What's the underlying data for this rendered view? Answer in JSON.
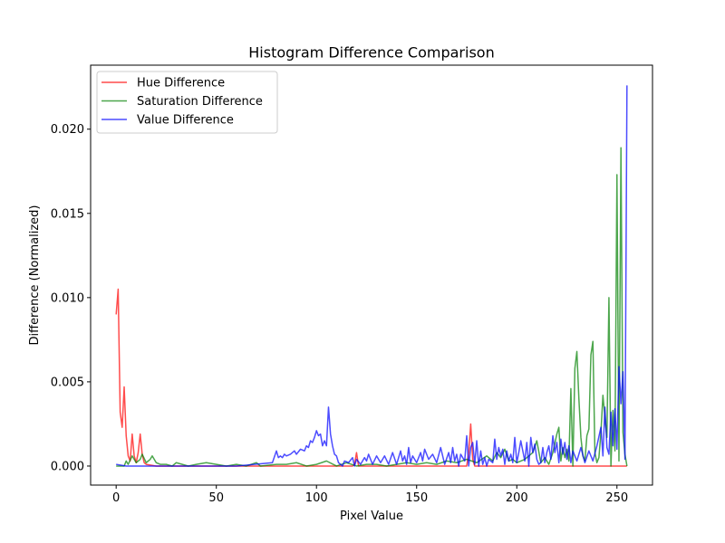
{
  "chart_data": {
    "type": "line",
    "title": "Histogram Difference Comparison",
    "xlabel": "Pixel Value",
    "ylabel": "Difference (Normalized)",
    "xlim": [
      -12.75,
      267.75
    ],
    "ylim": [
      -0.00113,
      0.0238
    ],
    "xticks": [
      0,
      50,
      100,
      150,
      200,
      250
    ],
    "yticks": [
      0.0,
      0.005,
      0.01,
      0.015,
      0.02
    ],
    "xtick_labels": [
      "0",
      "50",
      "100",
      "150",
      "200",
      "250"
    ],
    "ytick_labels": [
      "0.000",
      "0.005",
      "0.010",
      "0.015",
      "0.020"
    ],
    "grid": false,
    "legend_position": "upper-left",
    "series": [
      {
        "name": "Hue Difference",
        "color": "#ff0000",
        "points": [
          [
            0,
            0.009
          ],
          [
            1,
            0.0105
          ],
          [
            2,
            0.0032
          ],
          [
            3,
            0.0023
          ],
          [
            4,
            0.0047
          ],
          [
            5,
            0.0018
          ],
          [
            6,
            0.0006
          ],
          [
            7,
            0.0003
          ],
          [
            8,
            0.0019
          ],
          [
            9,
            0.0006
          ],
          [
            10,
            0.0002
          ],
          [
            11,
            0.0008
          ],
          [
            12,
            0.0019
          ],
          [
            13,
            0.0007
          ],
          [
            14,
            0.0002
          ],
          [
            15,
            0.0001
          ],
          [
            20,
            0.0
          ],
          [
            118,
            0.0
          ],
          [
            119,
            0.0001
          ],
          [
            120,
            0.0008
          ],
          [
            121,
            0.0
          ],
          [
            175,
            0.0
          ],
          [
            176,
            0.0008
          ],
          [
            177,
            0.0025
          ],
          [
            178,
            0.0004
          ],
          [
            179,
            0.0
          ],
          [
            255,
            0.0
          ]
        ]
      },
      {
        "name": "Saturation Difference",
        "color": "#008000",
        "points": [
          [
            0,
            0.0
          ],
          [
            4,
            0.0
          ],
          [
            5,
            0.0003
          ],
          [
            6,
            0.0001
          ],
          [
            8,
            0.0006
          ],
          [
            10,
            0.0002
          ],
          [
            12,
            0.0004
          ],
          [
            13,
            0.0007
          ],
          [
            15,
            0.0002
          ],
          [
            17,
            0.0004
          ],
          [
            18,
            0.0006
          ],
          [
            20,
            0.0002
          ],
          [
            22,
            0.0001
          ],
          [
            25,
            0.0001
          ],
          [
            28,
            0.0
          ],
          [
            30,
            0.0002
          ],
          [
            33,
            0.0001
          ],
          [
            36,
            0.0
          ],
          [
            40,
            0.0001
          ],
          [
            45,
            0.0002
          ],
          [
            50,
            0.0001
          ],
          [
            55,
            0.0
          ],
          [
            60,
            0.0001
          ],
          [
            65,
            0.0
          ],
          [
            70,
            0.0002
          ],
          [
            72,
            0.0
          ],
          [
            80,
            0.0001
          ],
          [
            85,
            0.0001
          ],
          [
            90,
            0.0002
          ],
          [
            95,
            0.0
          ],
          [
            100,
            0.0001
          ],
          [
            105,
            0.0003
          ],
          [
            110,
            0.0
          ],
          [
            115,
            0.0002
          ],
          [
            120,
            0.0
          ],
          [
            125,
            0.0001
          ],
          [
            130,
            0.0001
          ],
          [
            135,
            0.0
          ],
          [
            140,
            0.0001
          ],
          [
            145,
            0.0002
          ],
          [
            150,
            0.0001
          ],
          [
            155,
            0.0002
          ],
          [
            160,
            0.0001
          ],
          [
            165,
            0.0003
          ],
          [
            170,
            0.0002
          ],
          [
            175,
            0.0004
          ],
          [
            180,
            0.0002
          ],
          [
            185,
            0.0006
          ],
          [
            188,
            0.0003
          ],
          [
            190,
            0.0008
          ],
          [
            192,
            0.0005
          ],
          [
            194,
            0.001
          ],
          [
            196,
            0.0003
          ],
          [
            198,
            0.0004
          ],
          [
            200,
            0.0002
          ],
          [
            202,
            0.0003
          ],
          [
            204,
            0.0004
          ],
          [
            206,
            0.0006
          ],
          [
            208,
            0.0008
          ],
          [
            210,
            0.0015
          ],
          [
            212,
            0.0002
          ],
          [
            214,
            0.0005
          ],
          [
            216,
            0.0001
          ],
          [
            218,
            0.0008
          ],
          [
            220,
            0.0019
          ],
          [
            221,
            0.0023
          ],
          [
            222,
            0.0003
          ],
          [
            223,
            0.0011
          ],
          [
            224,
            0.0005
          ],
          [
            225,
            0.001
          ],
          [
            226,
            0.0003
          ],
          [
            227,
            0.0046
          ],
          [
            228,
            0.0
          ],
          [
            229,
            0.0058
          ],
          [
            230,
            0.0068
          ],
          [
            231,
            0.004
          ],
          [
            232,
            0.0017
          ],
          [
            233,
            0.0006
          ],
          [
            234,
            0.0003
          ],
          [
            235,
            0.0018
          ],
          [
            236,
            0.0022
          ],
          [
            237,
            0.0066
          ],
          [
            238,
            0.0074
          ],
          [
            239,
            0.0008
          ],
          [
            240,
            0.0002
          ],
          [
            241,
            0.0005
          ],
          [
            242,
            0.002
          ],
          [
            243,
            0.0042
          ],
          [
            244,
            0.0029
          ],
          [
            245,
            0.0017
          ],
          [
            246,
            0.01
          ],
          [
            247,
            0.0
          ],
          [
            248,
            0.0033
          ],
          [
            249,
            0.0009
          ],
          [
            250,
            0.0173
          ],
          [
            251,
            0.0003
          ],
          [
            252,
            0.0189
          ],
          [
            253,
            0.002
          ],
          [
            254,
            0.0007
          ],
          [
            255,
            0.0
          ]
        ]
      },
      {
        "name": "Value Difference",
        "color": "#0000ff",
        "points": [
          [
            0,
            0.0001
          ],
          [
            5,
            0.0
          ],
          [
            30,
            0.0
          ],
          [
            60,
            0.0
          ],
          [
            78,
            0.0002
          ],
          [
            80,
            0.0009
          ],
          [
            81,
            0.0005
          ],
          [
            82,
            0.0006
          ],
          [
            83,
            0.0005
          ],
          [
            84,
            0.0007
          ],
          [
            85,
            0.0006
          ],
          [
            87,
            0.0007
          ],
          [
            89,
            0.0009
          ],
          [
            90,
            0.0007
          ],
          [
            92,
            0.001
          ],
          [
            94,
            0.0009
          ],
          [
            95,
            0.0012
          ],
          [
            96,
            0.0011
          ],
          [
            97,
            0.0015
          ],
          [
            98,
            0.0014
          ],
          [
            99,
            0.0017
          ],
          [
            100,
            0.0021
          ],
          [
            101,
            0.0018
          ],
          [
            102,
            0.0019
          ],
          [
            103,
            0.0012
          ],
          [
            104,
            0.0015
          ],
          [
            105,
            0.0012
          ],
          [
            106,
            0.0035
          ],
          [
            107,
            0.0019
          ],
          [
            108,
            0.0012
          ],
          [
            109,
            0.0007
          ],
          [
            110,
            0.0006
          ],
          [
            111,
            0.0002
          ],
          [
            113,
            0.0
          ],
          [
            114,
            0.0003
          ],
          [
            116,
            0.0002
          ],
          [
            118,
            0.0005
          ],
          [
            119,
            0.0
          ],
          [
            120,
            0.0004
          ],
          [
            122,
            0.0001
          ],
          [
            124,
            0.0005
          ],
          [
            125,
            0.0003
          ],
          [
            126,
            0.0007
          ],
          [
            128,
            0.0001
          ],
          [
            130,
            0.0006
          ],
          [
            132,
            0.0002
          ],
          [
            134,
            0.0006
          ],
          [
            136,
            0.0001
          ],
          [
            138,
            0.0008
          ],
          [
            140,
            0.0001
          ],
          [
            142,
            0.0009
          ],
          [
            143,
            0.0003
          ],
          [
            144,
            0.0006
          ],
          [
            145,
            0.0001
          ],
          [
            146,
            0.0011
          ],
          [
            147,
            0.0002
          ],
          [
            148,
            0.0006
          ],
          [
            150,
            0.0002
          ],
          [
            152,
            0.0008
          ],
          [
            153,
            0.0003
          ],
          [
            154,
            0.001
          ],
          [
            156,
            0.0004
          ],
          [
            158,
            0.0007
          ],
          [
            160,
            0.0002
          ],
          [
            162,
            0.0011
          ],
          [
            164,
            0.0001
          ],
          [
            166,
            0.0008
          ],
          [
            167,
            0.0002
          ],
          [
            168,
            0.0011
          ],
          [
            169,
            0.0003
          ],
          [
            170,
            0.0007
          ],
          [
            171,
            0.0
          ],
          [
            172,
            0.0007
          ],
          [
            174,
            0.0003
          ],
          [
            175,
            0.0018
          ],
          [
            176,
            0.0
          ],
          [
            177,
            0.0011
          ],
          [
            178,
            0.0014
          ],
          [
            179,
            0.0001
          ],
          [
            180,
            0.0015
          ],
          [
            181,
            0.0
          ],
          [
            182,
            0.0009
          ],
          [
            183,
            0.0001
          ],
          [
            184,
            0.0005
          ],
          [
            185,
            0.0
          ],
          [
            186,
            0.0004
          ],
          [
            188,
            0.0002
          ],
          [
            189,
            0.0016
          ],
          [
            190,
            0.0004
          ],
          [
            191,
            0.0011
          ],
          [
            192,
            0.0006
          ],
          [
            193,
            0.001
          ],
          [
            194,
            0.0001
          ],
          [
            195,
            0.0009
          ],
          [
            196,
            0.0003
          ],
          [
            197,
            0.0007
          ],
          [
            198,
            0.0002
          ],
          [
            199,
            0.0017
          ],
          [
            200,
            0.0002
          ],
          [
            201,
            0.0008
          ],
          [
            202,
            0.0015
          ],
          [
            203,
            0.0009
          ],
          [
            204,
            0.0003
          ],
          [
            205,
            0.0014
          ],
          [
            206,
            0.0
          ],
          [
            207,
            0.0017
          ],
          [
            208,
            0.0008
          ],
          [
            209,
            0.0013
          ],
          [
            210,
            0.0004
          ],
          [
            211,
            0.0001
          ],
          [
            212,
            0.0002
          ],
          [
            213,
            0.0011
          ],
          [
            214,
            0.0002
          ],
          [
            215,
            0.0008
          ],
          [
            216,
            0.0012
          ],
          [
            217,
            0.0004
          ],
          [
            218,
            0.0018
          ],
          [
            219,
            0.0008
          ],
          [
            220,
            0.0014
          ],
          [
            221,
            0.0002
          ],
          [
            222,
            0.0016
          ],
          [
            223,
            0.0007
          ],
          [
            224,
            0.0014
          ],
          [
            225,
            0.0004
          ],
          [
            226,
            0.0012
          ],
          [
            227,
            0.0002
          ],
          [
            228,
            0.0009
          ],
          [
            230,
            0.0003
          ],
          [
            232,
            0.0011
          ],
          [
            234,
            0.0002
          ],
          [
            236,
            0.0009
          ],
          [
            238,
            0.0003
          ],
          [
            240,
            0.0012
          ],
          [
            242,
            0.0023
          ],
          [
            243,
            0.0006
          ],
          [
            244,
            0.0035
          ],
          [
            245,
            0.0011
          ],
          [
            246,
            0.0007
          ],
          [
            247,
            0.0032
          ],
          [
            248,
            0.0012
          ],
          [
            249,
            0.0034
          ],
          [
            250,
            0.001
          ],
          [
            251,
            0.0059
          ],
          [
            252,
            0.0037
          ],
          [
            253,
            0.0056
          ],
          [
            254,
            0.0004
          ],
          [
            255,
            0.0226
          ]
        ]
      }
    ]
  }
}
